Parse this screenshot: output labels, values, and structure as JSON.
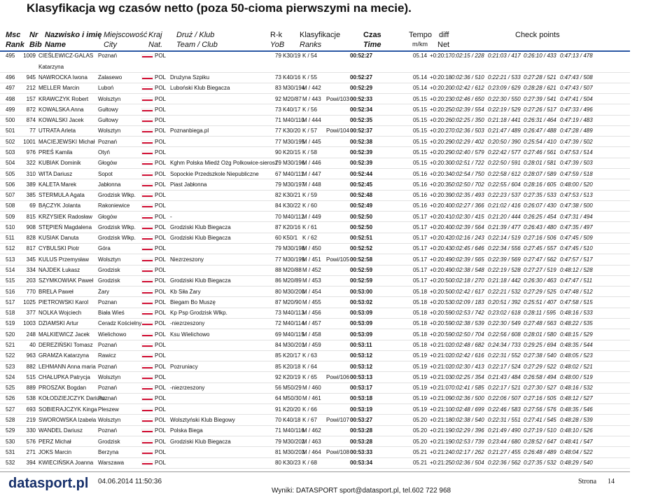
{
  "title": "Klasyfikacja wg czasów netto (poza 50-cioma pierwszymi na mecie).",
  "columns": [
    {
      "top": "Msc",
      "bottom": "Rank"
    },
    {
      "top": "Nr",
      "bottom": "Bib"
    },
    {
      "top": "Nazwisko i imię",
      "bottom": "Name"
    },
    {
      "top": "Miejscowość",
      "bottom": "City"
    },
    {
      "top": "Kraj",
      "bottom": "Nat."
    },
    {
      "top": "Druż / Klub",
      "bottom": "Team / Club"
    },
    {
      "top": "R-k",
      "bottom": "YoB"
    },
    {
      "top": "Klasyfikacje",
      "bottom": "Ranks"
    },
    {
      "top": "Czas",
      "bottom": "Time"
    },
    {
      "top": "Tempo",
      "bottom": "m/km"
    },
    {
      "top": "diff",
      "bottom": "Net"
    },
    {
      "top": "Check points"
    }
  ],
  "rows": [
    {
      "rank": "495",
      "bib": "1009",
      "name": "CIEŚLEWICZ-GALAS",
      "name2": "Katarzyna",
      "city": "Poznań",
      "nat": "POL",
      "yob": "79 K30/19",
      "cls": "K / 54",
      "time": "00:52:27",
      "pace": "05.14",
      "diff": "+0:20:17",
      "checkpoints": [
        "0:02:15 / 228",
        "0:21:03 / 417",
        "0:26:10 / 433",
        "0:47:13 / 478"
      ]
    },
    {
      "rank": "496",
      "bib": "945",
      "name": "NAWROCKA Iwona",
      "city": "Zalasewo",
      "nat": "POL",
      "club": "Drużyna Szpiku",
      "yob": "73 K40/16",
      "cls": "K / 55",
      "time": "00:52:27",
      "pace": "05.14",
      "diff": "+0:20:18",
      "checkpoints": [
        "0:02:36 / 510",
        "0:22:21 / 533",
        "0:27:28 / 521",
        "0:47:43 / 508"
      ]
    },
    {
      "rank": "497",
      "bib": "212",
      "name": "MELLER Marcin",
      "city": "Luboń",
      "nat": "POL",
      "club": "Luboński Klub Biegacza",
      "yob": "83 M30/194",
      "cls": "M / 442",
      "time": "00:52:29",
      "pace": "05.14",
      "diff": "+0:20:20",
      "checkpoints": [
        "0:02:42 / 612",
        "0:23:09 / 629",
        "0:28:28 / 621",
        "0:47:43 / 507"
      ]
    },
    {
      "rank": "498",
      "bib": "157",
      "name": "KRAWCZYK Robert",
      "city": "Wolsztyn",
      "nat": "POL",
      "yob": "92 M20/87",
      "cls": "M / 443",
      "extra": "Powi/103",
      "time": "00:52:33",
      "pace": "05.15",
      "diff": "+0:20:23",
      "checkpoints": [
        "0:02:46 / 650",
        "0:22:30 / 550",
        "0:27:39 / 541",
        "0:47:41 / 504"
      ]
    },
    {
      "rank": "499",
      "bib": "872",
      "name": "KOWALSKA Anna",
      "city": "Gułtowy",
      "nat": "POL",
      "yob": "73 K40/17",
      "cls": "K / 56",
      "time": "00:52:34",
      "pace": "05.15",
      "diff": "+0:20:25",
      "checkpoints": [
        "0:02:39 / 554",
        "0:22:19 / 529",
        "0:27:26 / 517",
        "0:47:33 / 496"
      ]
    },
    {
      "rank": "500",
      "bib": "874",
      "name": "KOWALSKI Jacek",
      "city": "Gułtowy",
      "nat": "POL",
      "yob": "71 M40/110",
      "cls": "M / 444",
      "time": "00:52:35",
      "pace": "05.15",
      "diff": "+0:20:26",
      "checkpoints": [
        "0:02:25 / 350",
        "0:21:18 / 441",
        "0:26:31 / 464",
        "0:47:19 / 483"
      ]
    },
    {
      "rank": "501",
      "bib": "77",
      "name": "UTRATA Arleta",
      "city": "Wolsztyn",
      "nat": "POL",
      "club": "Poznanbiega.pl",
      "yob": "77 K30/20",
      "cls": "K / 57",
      "extra": "Powi/104",
      "time": "00:52:37",
      "pace": "05.15",
      "diff": "+0:20:27",
      "checkpoints": [
        "0:02:36 / 503",
        "0:21:47 / 489",
        "0:26:47 / 488",
        "0:47:28 / 489"
      ]
    },
    {
      "rank": "502",
      "bib": "1001",
      "name": "MACIEJEWSKI Michał",
      "city": "Poznań",
      "nat": "POL",
      "yob": "77 M30/195",
      "cls": "M / 445",
      "time": "00:52:38",
      "pace": "05.15",
      "diff": "+0:20:29",
      "checkpoints": [
        "0:02:29 / 402",
        "0:20:50 / 390",
        "0:25:54 / 410",
        "0:47:39 / 502"
      ]
    },
    {
      "rank": "503",
      "bib": "976",
      "name": "PREŚ Kamila",
      "city": "Otyń",
      "nat": "POL",
      "yob": "90 K20/15",
      "cls": "K / 58",
      "time": "00:52:39",
      "pace": "05.15",
      "diff": "+0:20:29",
      "checkpoints": [
        "0:02:40 / 579",
        "0:22:42 / 577",
        "0:27:46 / 561",
        "0:47:53 / 514"
      ]
    },
    {
      "rank": "504",
      "bib": "322",
      "name": "KUBIAK Dominik",
      "city": "Głogów",
      "nat": "POL",
      "club": "Kghm Polska Miedź Ożg Polkowice-sierosz",
      "yob": "79 M30/196",
      "cls": "M / 446",
      "time": "00:52:39",
      "pace": "05.15",
      "diff": "+0:20:30",
      "checkpoints": [
        "0:02:51 / 722",
        "0:22:50 / 591",
        "0:28:01 / 581",
        "0:47:39 / 503"
      ]
    },
    {
      "rank": "505",
      "bib": "310",
      "name": "WITA Dariusz",
      "city": "Sopot",
      "nat": "POL",
      "club": "Sopockie Przedszkole Niepubliczne",
      "yob": "67 M40/111",
      "cls": "M / 447",
      "time": "00:52:44",
      "pace": "05.16",
      "diff": "+0:20:34",
      "checkpoints": [
        "0:02:54 / 750",
        "0:22:58 / 612",
        "0:28:07 / 589",
        "0:47:59 / 518"
      ]
    },
    {
      "rank": "506",
      "bib": "389",
      "name": "KALETA Marek",
      "city": "Jabłonna",
      "nat": "POL",
      "club": "Piast Jabłonna",
      "yob": "79 M30/197",
      "cls": "M / 448",
      "time": "00:52:45",
      "pace": "05.16",
      "diff": "+0:20:35",
      "checkpoints": [
        "0:02:50 / 702",
        "0:22:55 / 604",
        "0:28:16 / 605",
        "0:48:00 / 520"
      ]
    },
    {
      "rank": "507",
      "bib": "385",
      "name": "STERMULA Agata",
      "city": "Grodzisk Wlkp.",
      "nat": "POL",
      "yob": "82 K30/21",
      "cls": "K / 59",
      "time": "00:52:48",
      "pace": "05.16",
      "diff": "+0:20:39",
      "checkpoints": [
        "0:02:35 / 493",
        "0:22:23 / 537",
        "0:27:35 / 533",
        "0:47:53 / 513"
      ]
    },
    {
      "rank": "508",
      "bib": "69",
      "name": "BĄCZYK Jolanta",
      "city": "Rakoniewice",
      "nat": "POL",
      "yob": "84 K30/22",
      "cls": "K / 60",
      "time": "00:52:49",
      "pace": "05.16",
      "diff": "+0:20:40",
      "checkpoints": [
        "0:02:27 / 366",
        "0:21:02 / 416",
        "0:26:07 / 430",
        "0:47:38 / 500"
      ]
    },
    {
      "rank": "509",
      "bib": "815",
      "name": "KRZYSIEK Radosław",
      "city": "Głogów",
      "nat": "POL",
      "club": "-",
      "yob": "70 M40/112",
      "cls": "M / 449",
      "time": "00:52:50",
      "pace": "05.17",
      "diff": "+0:20:41",
      "checkpoints": [
        "0:02:30 / 415",
        "0:21:20 / 444",
        "0:26:25 / 454",
        "0:47:31 / 494"
      ]
    },
    {
      "rank": "510",
      "bib": "908",
      "name": "STĘPIEŃ Magdalena",
      "city": "Grodzisk Wlkp.",
      "nat": "POL",
      "club": "Grodziski Klub Biegacza",
      "yob": "87 K20/16",
      "cls": "K / 61",
      "time": "00:52:50",
      "pace": "05.17",
      "diff": "+0:20:40",
      "checkpoints": [
        "0:02:39 / 564",
        "0:21:39 / 477",
        "0:26:43 / 480",
        "0:47:35 / 497"
      ]
    },
    {
      "rank": "511",
      "bib": "828",
      "name": "KUSIAK Danuta",
      "city": "Grodzisk Wlkp.",
      "nat": "POL",
      "club": "Grodziski Klub Biegacza",
      "yob": "60 K50/1",
      "cls": "K / 62",
      "time": "00:52:51",
      "pace": "05.17",
      "diff": "+0:20:42",
      "checkpoints": [
        "0:02:16 / 243",
        "0:22:14 / 519",
        "0:27:16 / 506",
        "0:47:45 / 509"
      ]
    },
    {
      "rank": "512",
      "bib": "817",
      "name": "CYBULSKI Piotr",
      "city": "Góra",
      "nat": "POL",
      "yob": "79 M30/198",
      "cls": "M / 450",
      "time": "00:52:52",
      "pace": "05.17",
      "diff": "+0:20:43",
      "checkpoints": [
        "0:02:45 / 646",
        "0:22:34 / 556",
        "0:27:45 / 557",
        "0:47:45 / 510"
      ]
    },
    {
      "rank": "513",
      "bib": "345",
      "name": "KULUS Przemysław",
      "city": "Wolsztyn",
      "nat": "POL",
      "club": "Niezrzeszony",
      "yob": "77 M30/199",
      "cls": "M / 451",
      "extra": "Powi/105",
      "time": "00:52:58",
      "pace": "05.17",
      "diff": "+0:20:49",
      "checkpoints": [
        "0:02:39 / 565",
        "0:22:39 / 569",
        "0:27:47 / 562",
        "0:47:57 / 517"
      ]
    },
    {
      "rank": "514",
      "bib": "334",
      "name": "NAJDEK Łukasz",
      "city": "Grodzisk",
      "nat": "POL",
      "yob": "88 M20/88",
      "cls": "M / 452",
      "time": "00:52:59",
      "pace": "05.17",
      "diff": "+0:20:49",
      "checkpoints": [
        "0:02:38 / 548",
        "0:22:19 / 528",
        "0:27:27 / 519",
        "0:48:12 / 528"
      ]
    },
    {
      "rank": "515",
      "bib": "203",
      "name": "SZYMKOWIAK Paweł",
      "city": "Grodzisk",
      "nat": "POL",
      "club": "Grodziski Klub Biegacza",
      "yob": "86 M20/89",
      "cls": "M / 453",
      "time": "00:52:59",
      "pace": "05.17",
      "diff": "+0:20:50",
      "checkpoints": [
        "0:02:18 / 270",
        "0:21:18 / 442",
        "0:26:30 / 463",
        "0:47:47 / 511"
      ]
    },
    {
      "rank": "516",
      "bib": "770",
      "name": "BRELA Paweł",
      "city": "Żary",
      "nat": "POL",
      "club": "Kb Siła Żary",
      "yob": "80 M30/200",
      "cls": "M / 454",
      "time": "00:53:00",
      "pace": "05.18",
      "diff": "+0:20:50",
      "checkpoints": [
        "0:02:42 / 617",
        "0:22:21 / 532",
        "0:27:29 / 525",
        "0:47:48 / 512"
      ]
    },
    {
      "rank": "517",
      "bib": "1025",
      "name": "PIETROWSKI Karol",
      "city": "Poznan",
      "nat": "POL",
      "club": "Biegam Bo Muszę",
      "yob": "87 M20/90",
      "cls": "M / 455",
      "time": "00:53:02",
      "pace": "05.18",
      "diff": "+0:20:53",
      "checkpoints": [
        "0:02:09 / 183",
        "0:20:51 / 392",
        "0:25:51 / 407",
        "0:47:58 / 515"
      ]
    },
    {
      "rank": "518",
      "bib": "377",
      "name": "NOLKA Wojciech",
      "city": "Biała Wieś",
      "nat": "POL",
      "club": "Kp Psp Grodzisk Wlkp.",
      "yob": "73 M40/113",
      "cls": "M / 456",
      "time": "00:53:09",
      "pace": "05.18",
      "diff": "+0:20:59",
      "checkpoints": [
        "0:02:53 / 742",
        "0:23:02 / 618",
        "0:28:11 / 595",
        "0:48:16 / 533"
      ]
    },
    {
      "rank": "519",
      "bib": "1003",
      "name": "DZIAMSKI Artur",
      "city": "Ceradz Kościelny",
      "nat": "POL",
      "club": "-niezrzeszony",
      "yob": "72 M40/114",
      "cls": "M / 457",
      "time": "00:53:09",
      "pace": "05.18",
      "diff": "+0:20:59",
      "checkpoints": [
        "0:02:38 / 539",
        "0:22:30 / 549",
        "0:27:48 / 563",
        "0:48:22 / 535"
      ]
    },
    {
      "rank": "520",
      "bib": "248",
      "name": "MALKIEWICZ Jacek",
      "city": "Wielichowo",
      "nat": "POL",
      "club": "Ksu Wielichowo",
      "yob": "69 M40/115",
      "cls": "M / 458",
      "time": "00:53:09",
      "pace": "05.18",
      "diff": "+0:20:59",
      "checkpoints": [
        "0:02:50 / 704",
        "0:22:56 / 608",
        "0:28:01 / 580",
        "0:48:15 / 529"
      ]
    },
    {
      "rank": "521",
      "bib": "40",
      "name": "DEREZIŃSKI Tomasz",
      "city": "Poznań",
      "nat": "POL",
      "yob": "84 M30/201",
      "cls": "M / 459",
      "time": "00:53:11",
      "pace": "05.18",
      "diff": "+0:21:02",
      "checkpoints": [
        "0:02:48 / 682",
        "0:24:34 / 733",
        "0:29:25 / 694",
        "0:48:35 / 544"
      ]
    },
    {
      "rank": "522",
      "bib": "963",
      "name": "GRAMZA Katarzyna",
      "city": "Rawicz",
      "nat": "POL",
      "yob": "85 K20/17",
      "cls": "K / 63",
      "time": "00:53:12",
      "pace": "05.19",
      "diff": "+0:21:02",
      "checkpoints": [
        "0:02:42 / 616",
        "0:22:31 / 552",
        "0:27:38 / 540",
        "0:48:05 / 523"
      ]
    },
    {
      "rank": "523",
      "bib": "882",
      "name": "LEHMANN Anna maria",
      "city": "Poznań",
      "nat": "POL",
      "club": "Pozruniacy",
      "yob": "85 K20/18",
      "cls": "K / 64",
      "time": "00:53:12",
      "pace": "05.19",
      "diff": "+0:21:02",
      "checkpoints": [
        "0:02:30 / 413",
        "0:22:17 / 524",
        "0:27:29 / 522",
        "0:48:02 / 521"
      ]
    },
    {
      "rank": "524",
      "bib": "515",
      "name": "CHAŁUPKA Patrycja",
      "city": "Wolsztyn",
      "nat": "POL",
      "yob": "92 K20/19",
      "cls": "K / 65",
      "extra": "Powi/106",
      "time": "00:53:13",
      "pace": "05.19",
      "diff": "+0:21:03",
      "checkpoints": [
        "0:02:25 / 354",
        "0:21:43 / 484",
        "0:26:58 / 494",
        "0:48:00 / 519"
      ]
    },
    {
      "rank": "525",
      "bib": "889",
      "name": "PROSZAK Bogdan",
      "city": "Poznań",
      "nat": "POL",
      "club": "-niezrzeszony",
      "yob": "56 M50/29",
      "cls": "M / 460",
      "time": "00:53:17",
      "pace": "05.19",
      "diff": "+0:21:07",
      "checkpoints": [
        "0:02:41 / 585",
        "0:22:17 / 521",
        "0:27:30 / 527",
        "0:48:16 / 532"
      ]
    },
    {
      "rank": "526",
      "bib": "538",
      "name": "KOŁODZIEJCZYK Dariusz",
      "city": "Poznań",
      "nat": "POL",
      "yob": "64 M50/30",
      "cls": "M / 461",
      "time": "00:53:18",
      "pace": "05.19",
      "diff": "+0:21:09",
      "checkpoints": [
        "0:02:36 / 500",
        "0:22:06 / 507",
        "0:27:16 / 505",
        "0:48:12 / 527"
      ]
    },
    {
      "rank": "527",
      "bib": "693",
      "name": "SOBIERAJCZYK Kinga",
      "city": "Pleszew",
      "nat": "POL",
      "yob": "91 K20/20",
      "cls": "K / 66",
      "time": "00:53:19",
      "pace": "05.19",
      "diff": "+0:21:10",
      "checkpoints": [
        "0:02:48 / 699",
        "0:22:46 / 583",
        "0:27:56 / 576",
        "0:48:35 / 546"
      ]
    },
    {
      "rank": "528",
      "bib": "219",
      "name": "SWOROWSKA Izabela",
      "city": "Wolsztyn",
      "nat": "POL",
      "club": "Wolsztyński Klub Biegowy",
      "yob": "70 K40/18",
      "cls": "K / 67",
      "extra": "Powi/107",
      "time": "00:53:27",
      "pace": "05.20",
      "diff": "+0:21:18",
      "checkpoints": [
        "0:02:38 / 540",
        "0:22:31 / 551",
        "0:27:41 / 545",
        "0:48:28 / 539"
      ]
    },
    {
      "rank": "529",
      "bib": "330",
      "name": "WANDEL Dariusz",
      "city": "Poznań",
      "nat": "POL",
      "club": "Polska Biega",
      "yob": "71 M40/116",
      "cls": "M / 462",
      "time": "00:53:28",
      "pace": "05.20",
      "diff": "+0:21:19",
      "checkpoints": [
        "0:02:29 / 396",
        "0:21:49 / 490",
        "0:27:19 / 510",
        "0:48:10 / 526"
      ]
    },
    {
      "rank": "530",
      "bib": "576",
      "name": "PERZ Michał",
      "city": "Grodzisk",
      "nat": "POL",
      "club": "Grodziski Klub Biegacza",
      "yob": "79 M30/202",
      "cls": "M / 463",
      "time": "00:53:28",
      "pace": "05.20",
      "diff": "+0:21:19",
      "checkpoints": [
        "0:02:53 / 739",
        "0:23:44 / 680",
        "0:28:52 / 647",
        "0:48:41 / 547"
      ]
    },
    {
      "rank": "531",
      "bib": "271",
      "name": "JOKS Marcin",
      "city": "Berzyna",
      "nat": "POL",
      "yob": "81 M30/203",
      "cls": "M / 464",
      "extra": "Powi/108",
      "time": "00:53:33",
      "pace": "05.21",
      "diff": "+0:21:24",
      "checkpoints": [
        "0:02:17 / 262",
        "0:21:27 / 455",
        "0:26:48 / 489",
        "0:48:04 / 522"
      ]
    },
    {
      "rank": "532",
      "bib": "394",
      "name": "KWIECIŃSKA Joanna",
      "city": "Warszawa",
      "nat": "POL",
      "yob": "80 K30/23",
      "cls": "K / 68",
      "time": "00:53:34",
      "pace": "05.21",
      "diff": "+0:21:25",
      "checkpoints": [
        "0:02:36 / 504",
        "0:22:36 / 562",
        "0:27:35 / 532",
        "0:48:29 / 540"
      ]
    }
  ],
  "footer": {
    "logo": "datasport.pl",
    "date": "04.06.2014 11:50:36",
    "contact": "Wyniki: DATASPORT sport@datasport.pl, tel.602 722 968",
    "page_label": "Strona",
    "page": "14"
  }
}
